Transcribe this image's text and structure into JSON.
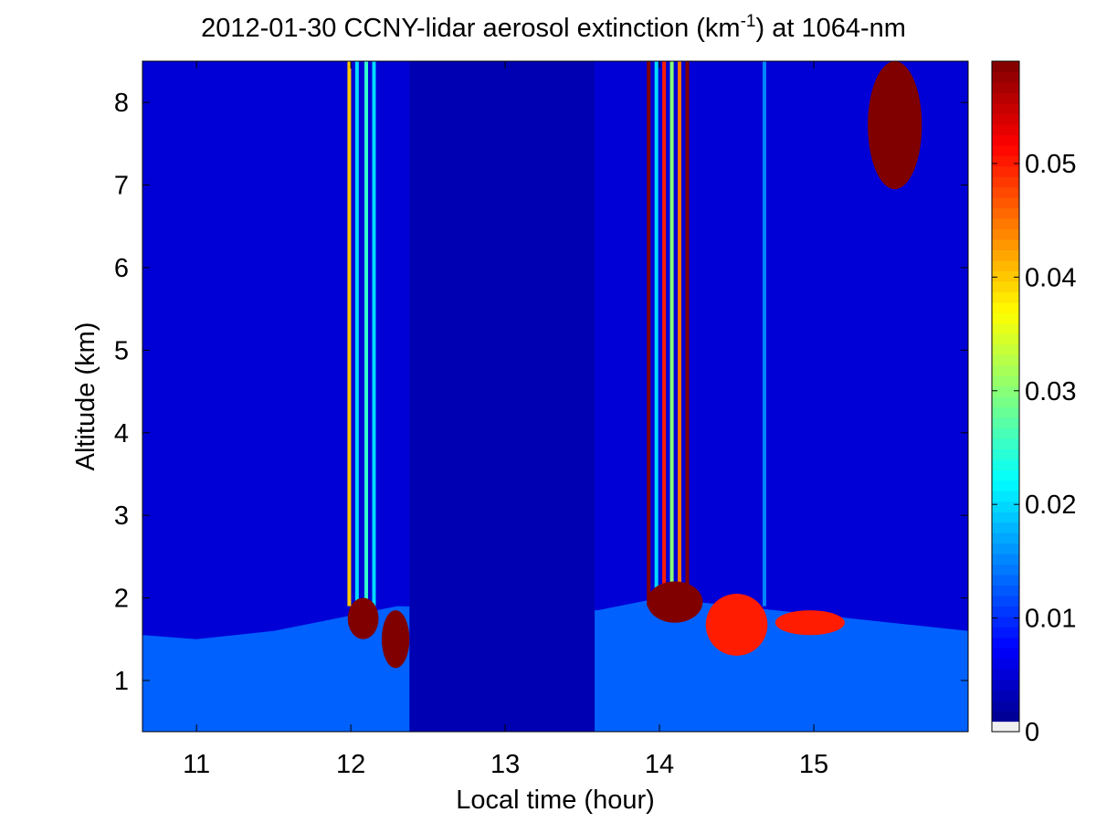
{
  "chart_data": {
    "type": "heatmap",
    "title": {
      "main": "2012-01-30 CCNY-lidar aerosol extinction (km",
      "superscript": "-1",
      "rest": ") at 1064-nm"
    },
    "xlabel": "Local time (hour)",
    "ylabel": "Altitude (km)",
    "xlim": [
      10.65,
      16.0
    ],
    "ylim": [
      0.38,
      8.5
    ],
    "x_ticks": [
      11,
      12,
      13,
      14,
      15
    ],
    "y_ticks": [
      1,
      2,
      3,
      4,
      5,
      6,
      7,
      8
    ],
    "colorbar": {
      "colormap": "jet",
      "range": [
        0,
        0.059
      ],
      "ticks": [
        0,
        0.01,
        0.02,
        0.03,
        0.04,
        0.05
      ],
      "tick_labels": [
        "0",
        "0.01",
        "0.02",
        "0.03",
        "0.04",
        "0.05"
      ],
      "zero_color": "#f0f0f0"
    },
    "background_value": 0.005,
    "data_gap": {
      "x": [
        12.38,
        13.58
      ],
      "value": 0.003
    },
    "boundary_layer": {
      "description": "enhanced aerosol near the surface",
      "top_km": [
        [
          10.65,
          1.55
        ],
        [
          11.0,
          1.5
        ],
        [
          11.5,
          1.6
        ],
        [
          11.9,
          1.75
        ],
        [
          12.3,
          1.9
        ],
        [
          13.6,
          1.85
        ],
        [
          14.0,
          2.0
        ],
        [
          14.5,
          1.9
        ],
        [
          15.0,
          1.8
        ],
        [
          15.5,
          1.7
        ],
        [
          16.0,
          1.6
        ]
      ],
      "value": 0.013
    },
    "features": [
      {
        "name": "low cloud near 12h",
        "x": [
          11.98,
          12.18
        ],
        "y": [
          1.5,
          2.0
        ],
        "value": 0.06
      },
      {
        "name": "low cloud fragments 12.2-12.4h",
        "x": [
          12.2,
          12.38
        ],
        "y": [
          1.15,
          1.85
        ],
        "value": 0.06
      },
      {
        "name": "low cloud near 14h",
        "x": [
          13.92,
          14.28
        ],
        "y": [
          1.7,
          2.2
        ],
        "value": 0.06
      },
      {
        "name": "broken low cloud 14.3-14.7h",
        "x": [
          14.3,
          14.7
        ],
        "y": [
          1.3,
          2.05
        ],
        "value": 0.05
      },
      {
        "name": "broken low cloud 14.7-15.2h",
        "x": [
          14.75,
          15.2
        ],
        "y": [
          1.55,
          1.85
        ],
        "value": 0.05
      },
      {
        "name": "cirrus",
        "x": [
          15.35,
          15.7
        ],
        "y": [
          6.95,
          8.5
        ],
        "value": 0.06
      }
    ],
    "streaks": [
      {
        "x": 11.99,
        "value": 0.04
      },
      {
        "x": 12.04,
        "value": 0.02
      },
      {
        "x": 12.1,
        "value": 0.025
      },
      {
        "x": 12.15,
        "value": 0.02
      },
      {
        "x": 13.93,
        "value": 0.06
      },
      {
        "x": 13.98,
        "value": 0.02
      },
      {
        "x": 14.03,
        "value": 0.05
      },
      {
        "x": 14.08,
        "value": 0.03
      },
      {
        "x": 14.13,
        "value": 0.045
      },
      {
        "x": 14.18,
        "value": 0.06
      },
      {
        "x": 14.68,
        "value": 0.015
      }
    ]
  }
}
